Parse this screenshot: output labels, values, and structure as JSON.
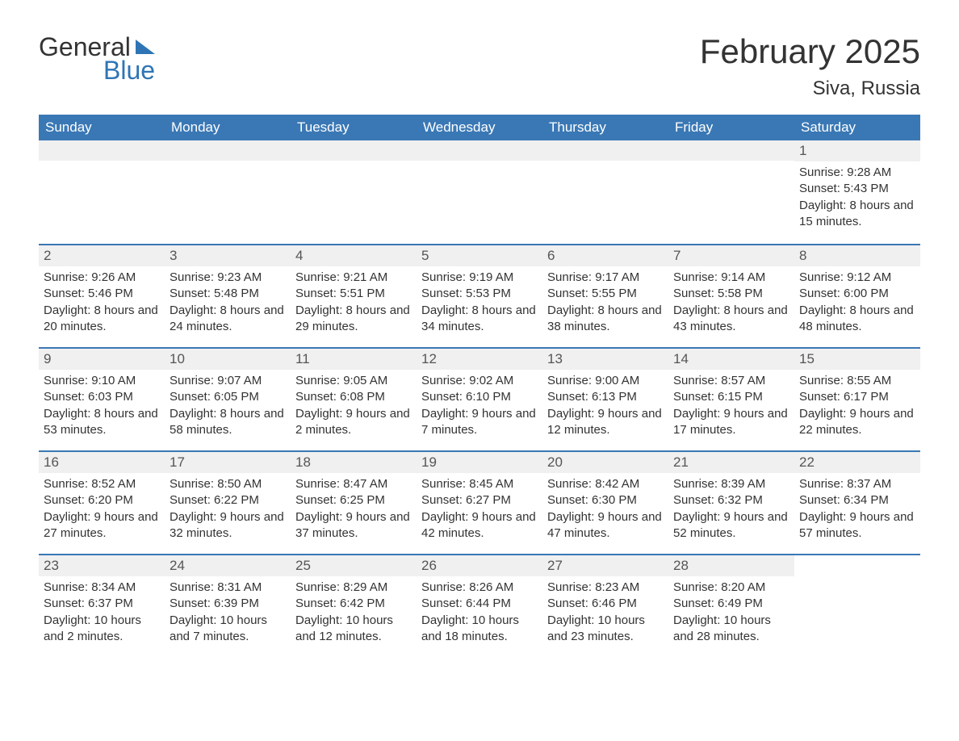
{
  "logo": {
    "text1": "General",
    "text2": "Blue"
  },
  "title": "February 2025",
  "location": "Siva, Russia",
  "colors": {
    "header_bg": "#3a78b5",
    "header_text": "#ffffff",
    "daynum_bg": "#f0f0f0",
    "border": "#3a78b5",
    "text": "#333333",
    "logo_blue": "#2f75b5"
  },
  "weekdays": [
    "Sunday",
    "Monday",
    "Tuesday",
    "Wednesday",
    "Thursday",
    "Friday",
    "Saturday"
  ],
  "weeks": [
    [
      {
        "n": "",
        "sunrise": "",
        "sunset": "",
        "daylight": ""
      },
      {
        "n": "",
        "sunrise": "",
        "sunset": "",
        "daylight": ""
      },
      {
        "n": "",
        "sunrise": "",
        "sunset": "",
        "daylight": ""
      },
      {
        "n": "",
        "sunrise": "",
        "sunset": "",
        "daylight": ""
      },
      {
        "n": "",
        "sunrise": "",
        "sunset": "",
        "daylight": ""
      },
      {
        "n": "",
        "sunrise": "",
        "sunset": "",
        "daylight": ""
      },
      {
        "n": "1",
        "sunrise": "Sunrise: 9:28 AM",
        "sunset": "Sunset: 5:43 PM",
        "daylight": "Daylight: 8 hours and 15 minutes."
      }
    ],
    [
      {
        "n": "2",
        "sunrise": "Sunrise: 9:26 AM",
        "sunset": "Sunset: 5:46 PM",
        "daylight": "Daylight: 8 hours and 20 minutes."
      },
      {
        "n": "3",
        "sunrise": "Sunrise: 9:23 AM",
        "sunset": "Sunset: 5:48 PM",
        "daylight": "Daylight: 8 hours and 24 minutes."
      },
      {
        "n": "4",
        "sunrise": "Sunrise: 9:21 AM",
        "sunset": "Sunset: 5:51 PM",
        "daylight": "Daylight: 8 hours and 29 minutes."
      },
      {
        "n": "5",
        "sunrise": "Sunrise: 9:19 AM",
        "sunset": "Sunset: 5:53 PM",
        "daylight": "Daylight: 8 hours and 34 minutes."
      },
      {
        "n": "6",
        "sunrise": "Sunrise: 9:17 AM",
        "sunset": "Sunset: 5:55 PM",
        "daylight": "Daylight: 8 hours and 38 minutes."
      },
      {
        "n": "7",
        "sunrise": "Sunrise: 9:14 AM",
        "sunset": "Sunset: 5:58 PM",
        "daylight": "Daylight: 8 hours and 43 minutes."
      },
      {
        "n": "8",
        "sunrise": "Sunrise: 9:12 AM",
        "sunset": "Sunset: 6:00 PM",
        "daylight": "Daylight: 8 hours and 48 minutes."
      }
    ],
    [
      {
        "n": "9",
        "sunrise": "Sunrise: 9:10 AM",
        "sunset": "Sunset: 6:03 PM",
        "daylight": "Daylight: 8 hours and 53 minutes."
      },
      {
        "n": "10",
        "sunrise": "Sunrise: 9:07 AM",
        "sunset": "Sunset: 6:05 PM",
        "daylight": "Daylight: 8 hours and 58 minutes."
      },
      {
        "n": "11",
        "sunrise": "Sunrise: 9:05 AM",
        "sunset": "Sunset: 6:08 PM",
        "daylight": "Daylight: 9 hours and 2 minutes."
      },
      {
        "n": "12",
        "sunrise": "Sunrise: 9:02 AM",
        "sunset": "Sunset: 6:10 PM",
        "daylight": "Daylight: 9 hours and 7 minutes."
      },
      {
        "n": "13",
        "sunrise": "Sunrise: 9:00 AM",
        "sunset": "Sunset: 6:13 PM",
        "daylight": "Daylight: 9 hours and 12 minutes."
      },
      {
        "n": "14",
        "sunrise": "Sunrise: 8:57 AM",
        "sunset": "Sunset: 6:15 PM",
        "daylight": "Daylight: 9 hours and 17 minutes."
      },
      {
        "n": "15",
        "sunrise": "Sunrise: 8:55 AM",
        "sunset": "Sunset: 6:17 PM",
        "daylight": "Daylight: 9 hours and 22 minutes."
      }
    ],
    [
      {
        "n": "16",
        "sunrise": "Sunrise: 8:52 AM",
        "sunset": "Sunset: 6:20 PM",
        "daylight": "Daylight: 9 hours and 27 minutes."
      },
      {
        "n": "17",
        "sunrise": "Sunrise: 8:50 AM",
        "sunset": "Sunset: 6:22 PM",
        "daylight": "Daylight: 9 hours and 32 minutes."
      },
      {
        "n": "18",
        "sunrise": "Sunrise: 8:47 AM",
        "sunset": "Sunset: 6:25 PM",
        "daylight": "Daylight: 9 hours and 37 minutes."
      },
      {
        "n": "19",
        "sunrise": "Sunrise: 8:45 AM",
        "sunset": "Sunset: 6:27 PM",
        "daylight": "Daylight: 9 hours and 42 minutes."
      },
      {
        "n": "20",
        "sunrise": "Sunrise: 8:42 AM",
        "sunset": "Sunset: 6:30 PM",
        "daylight": "Daylight: 9 hours and 47 minutes."
      },
      {
        "n": "21",
        "sunrise": "Sunrise: 8:39 AM",
        "sunset": "Sunset: 6:32 PM",
        "daylight": "Daylight: 9 hours and 52 minutes."
      },
      {
        "n": "22",
        "sunrise": "Sunrise: 8:37 AM",
        "sunset": "Sunset: 6:34 PM",
        "daylight": "Daylight: 9 hours and 57 minutes."
      }
    ],
    [
      {
        "n": "23",
        "sunrise": "Sunrise: 8:34 AM",
        "sunset": "Sunset: 6:37 PM",
        "daylight": "Daylight: 10 hours and 2 minutes."
      },
      {
        "n": "24",
        "sunrise": "Sunrise: 8:31 AM",
        "sunset": "Sunset: 6:39 PM",
        "daylight": "Daylight: 10 hours and 7 minutes."
      },
      {
        "n": "25",
        "sunrise": "Sunrise: 8:29 AM",
        "sunset": "Sunset: 6:42 PM",
        "daylight": "Daylight: 10 hours and 12 minutes."
      },
      {
        "n": "26",
        "sunrise": "Sunrise: 8:26 AM",
        "sunset": "Sunset: 6:44 PM",
        "daylight": "Daylight: 10 hours and 18 minutes."
      },
      {
        "n": "27",
        "sunrise": "Sunrise: 8:23 AM",
        "sunset": "Sunset: 6:46 PM",
        "daylight": "Daylight: 10 hours and 23 minutes."
      },
      {
        "n": "28",
        "sunrise": "Sunrise: 8:20 AM",
        "sunset": "Sunset: 6:49 PM",
        "daylight": "Daylight: 10 hours and 28 minutes."
      },
      {
        "n": "",
        "sunrise": "",
        "sunset": "",
        "daylight": ""
      }
    ]
  ]
}
